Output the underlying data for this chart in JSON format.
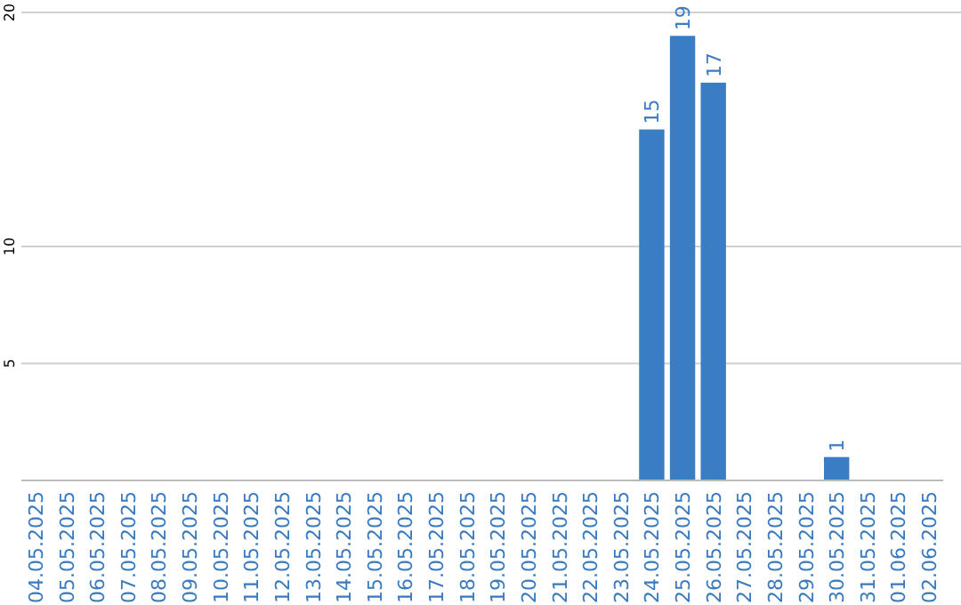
{
  "chart_data": {
    "type": "bar",
    "categories": [
      "04.05.2025",
      "05.05.2025",
      "06.05.2025",
      "07.05.2025",
      "08.05.2025",
      "09.05.2025",
      "10.05.2025",
      "11.05.2025",
      "12.05.2025",
      "13.05.2025",
      "14.05.2025",
      "15.05.2025",
      "16.05.2025",
      "17.05.2025",
      "18.05.2025",
      "19.05.2025",
      "20.05.2025",
      "21.05.2025",
      "22.05.2025",
      "23.05.2025",
      "24.05.2025",
      "25.05.2025",
      "26.05.2025",
      "27.05.2025",
      "28.05.2025",
      "29.05.2025",
      "30.05.2025",
      "31.05.2025",
      "01.06.2025",
      "02.06.2025"
    ],
    "values": [
      null,
      null,
      null,
      null,
      null,
      null,
      null,
      null,
      null,
      null,
      null,
      null,
      null,
      null,
      null,
      null,
      null,
      null,
      null,
      null,
      15,
      19,
      17,
      null,
      null,
      null,
      1,
      null,
      null,
      null
    ],
    "color": "#3b7dc4",
    "ylim": [
      0,
      20
    ],
    "yticks": [
      5,
      10,
      20
    ],
    "grid": "y",
    "data_labels": true
  }
}
